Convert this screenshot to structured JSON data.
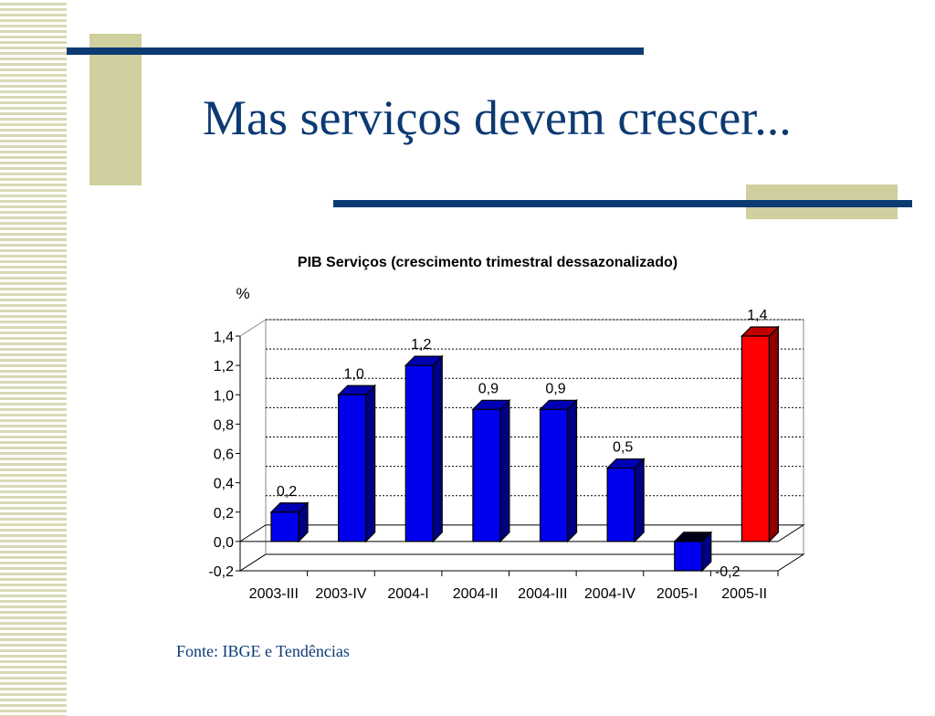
{
  "slide": {
    "title": "Mas serviços devem crescer...",
    "source": "Fonte: IBGE e Tendências"
  },
  "colors": {
    "title": "#0c3a73",
    "bar": "#0000ee",
    "bar_highlight": "#ff0000",
    "accent_block": "#cfcf9f"
  },
  "chart_data": {
    "type": "bar",
    "title": "PIB Serviços (crescimento trimestral dessazonalizado)",
    "ylabel": "%",
    "xlabel": "",
    "categories": [
      "2003-III",
      "2003-IV",
      "2004-I",
      "2004-II",
      "2004-III",
      "2004-IV",
      "2005-I",
      "2005-II"
    ],
    "values": [
      0.2,
      1.0,
      1.2,
      0.9,
      0.9,
      0.5,
      -0.2,
      1.4
    ],
    "value_labels": [
      "0,2",
      "1,0",
      "1,2",
      "0,9",
      "0,9",
      "0,5",
      "-0,2",
      "1,4"
    ],
    "highlight": [
      false,
      false,
      false,
      false,
      false,
      false,
      false,
      true
    ],
    "ylim": [
      -0.2,
      1.4
    ],
    "yticks": [
      -0.2,
      0.0,
      0.2,
      0.4,
      0.6,
      0.8,
      1.0,
      1.2,
      1.4
    ],
    "ytick_labels": [
      "-0,2",
      "0,0",
      "0,2",
      "0,4",
      "0,6",
      "0,8",
      "1,0",
      "1,2",
      "1,4"
    ],
    "grid": true,
    "grid_style": "dashed",
    "style": "3d"
  }
}
